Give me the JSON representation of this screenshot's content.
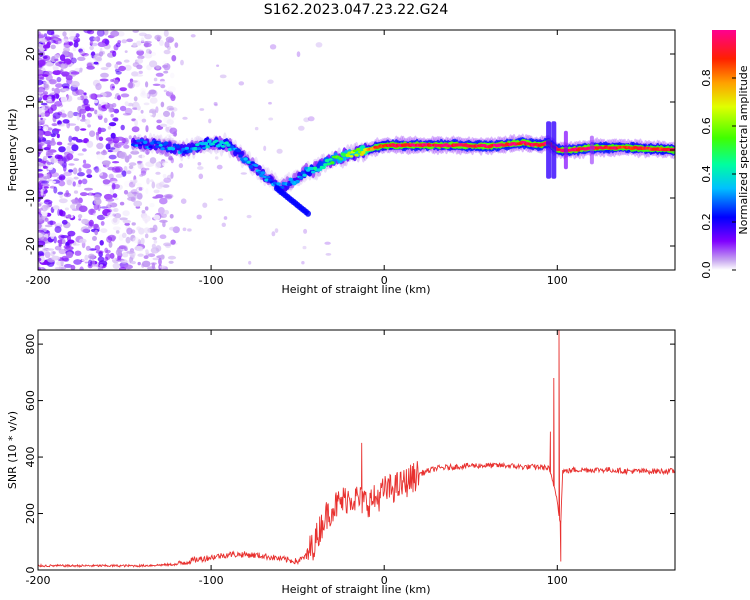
{
  "title": "S162.2023.047.23.22.G24",
  "chart_data": [
    {
      "type": "heatmap",
      "title": "",
      "xlabel": "Height of straight line (km)",
      "ylabel": "Frequency (Hz)",
      "xlim": [
        -200,
        168
      ],
      "ylim": [
        -25,
        25
      ],
      "xticks": [
        -200,
        -100,
        0,
        100
      ],
      "yticks": [
        20,
        10,
        0,
        -10,
        -20
      ],
      "colorbar": {
        "label": "Normalized spectral amplitude",
        "range": [
          0,
          1
        ],
        "ticks": [
          0.0,
          0.2,
          0.4,
          0.6,
          0.8
        ],
        "colors": [
          "#ffffff",
          "#8000ff",
          "#0000ff",
          "#00ffff",
          "#00ff00",
          "#ffff00",
          "#ff8000",
          "#ff0000",
          "#ff00a0"
        ]
      },
      "ridge": {
        "x": [
          -145,
          -130,
          -115,
          -100,
          -90,
          -80,
          -70,
          -60,
          -55,
          -50,
          -45,
          -40,
          -35,
          -30,
          -25,
          -20,
          -15,
          -10,
          -5,
          0,
          10,
          20,
          40,
          60,
          80,
          90,
          95,
          100,
          110,
          120,
          140,
          168
        ],
        "freq": [
          1.5,
          1.0,
          0.0,
          1.5,
          1.0,
          -2.0,
          -5.0,
          -8.0,
          -7.0,
          -6.0,
          -4.5,
          -4.0,
          -3.0,
          -2.0,
          -1.5,
          -1.0,
          -0.5,
          0.0,
          0.5,
          1.0,
          1.0,
          1.0,
          1.0,
          0.8,
          1.5,
          1.0,
          1.5,
          0.0,
          0.0,
          0.5,
          0.5,
          0.0
        ],
        "amplitude": [
          0.25,
          0.3,
          0.3,
          0.35,
          0.35,
          0.3,
          0.3,
          0.3,
          0.3,
          0.3,
          0.35,
          0.4,
          0.45,
          0.5,
          0.55,
          0.6,
          0.65,
          0.75,
          0.85,
          0.9,
          0.95,
          0.95,
          0.95,
          0.95,
          0.95,
          0.95,
          0.9,
          0.95,
          0.95,
          0.95,
          0.9,
          0.9
        ]
      }
    },
    {
      "type": "line",
      "title": "",
      "xlabel": "Height of straight line (km)",
      "ylabel": "SNR (10 * v/v)",
      "xlim": [
        -200,
        168
      ],
      "ylim": [
        0,
        850
      ],
      "xticks": [
        -200,
        -100,
        0,
        100
      ],
      "yticks": [
        0,
        200,
        400,
        600,
        800
      ],
      "series": [
        {
          "name": "SNR",
          "color": "#e8312f",
          "x": [
            -200,
            -180,
            -160,
            -140,
            -120,
            -110,
            -100,
            -90,
            -80,
            -70,
            -60,
            -50,
            -45,
            -40,
            -35,
            -30,
            -25,
            -20,
            -15,
            -10,
            -5,
            0,
            5,
            10,
            15,
            20,
            25,
            30,
            40,
            50,
            60,
            70,
            80,
            90,
            95,
            98,
            100,
            101,
            102,
            103,
            105,
            110,
            120,
            130,
            140,
            150,
            160,
            168
          ],
          "values": [
            15,
            15,
            15,
            15,
            20,
            35,
            45,
            55,
            55,
            50,
            40,
            30,
            50,
            100,
            180,
            220,
            240,
            260,
            250,
            240,
            250,
            280,
            290,
            300,
            320,
            340,
            350,
            360,
            365,
            370,
            370,
            370,
            365,
            365,
            360,
            300,
            250,
            200,
            150,
            350,
            350,
            355,
            355,
            355,
            350,
            350,
            350,
            350
          ],
          "spikes": [
            {
              "x": -13,
              "value": 450
            },
            {
              "x": 96,
              "value": 490
            },
            {
              "x": 98,
              "value": 680
            },
            {
              "x": 101,
              "value": 850
            },
            {
              "x": 102,
              "value": 30
            }
          ]
        }
      ]
    }
  ]
}
